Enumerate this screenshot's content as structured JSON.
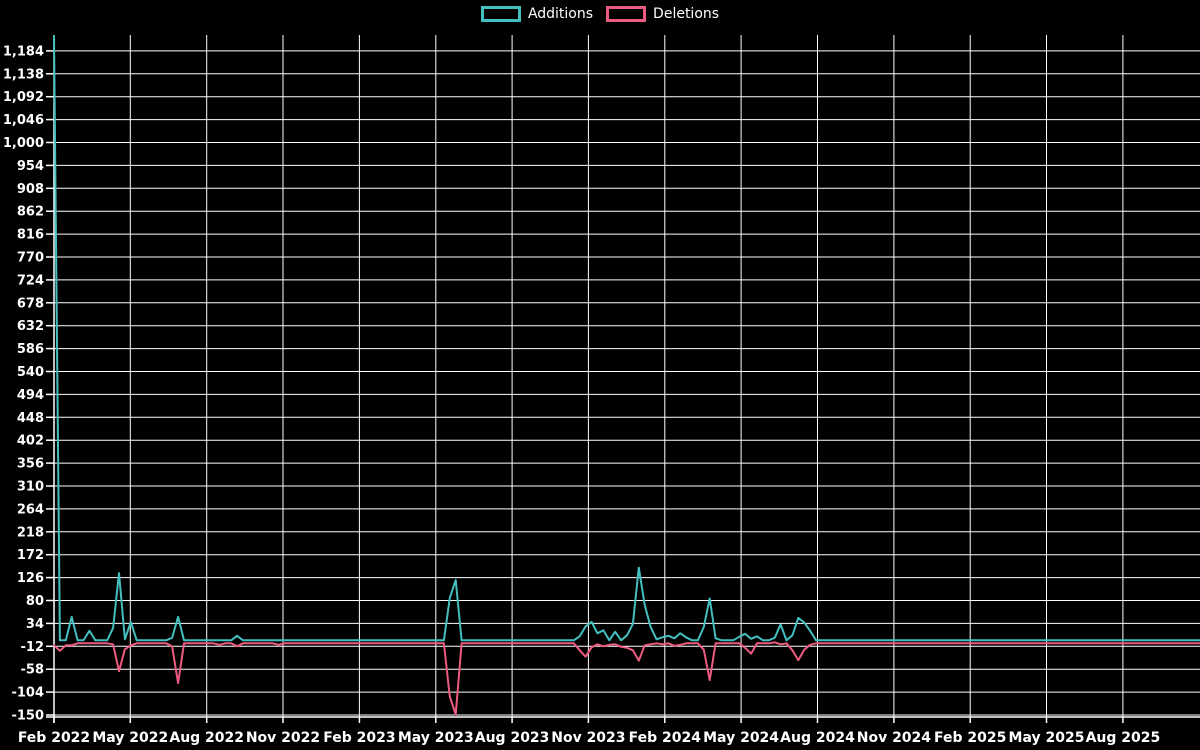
{
  "colors": {
    "background": "#000000",
    "grid": "#ffffff",
    "axis": "#ffffff",
    "text": "#ffffff",
    "additions": "#44bfbf",
    "deletions": "#ee5b80"
  },
  "legend": [
    {
      "label": "Additions",
      "color": "#44bfbf"
    },
    {
      "label": "Deletions",
      "color": "#ee5b80"
    }
  ],
  "chart_data": {
    "type": "line",
    "title": "",
    "legend_position": "top-center",
    "grid": true,
    "x_axis": {
      "unit": "week",
      "tick_labels": [
        "Feb 2022",
        "May 2022",
        "Aug 2022",
        "Nov 2022",
        "Feb 2023",
        "May 2023",
        "Aug 2023",
        "Nov 2023",
        "Feb 2024",
        "May 2024",
        "Aug 2024",
        "Nov 2024",
        "Feb 2025",
        "May 2025",
        "Aug 2025"
      ],
      "tick_months_from_start": [
        0,
        3,
        6,
        9,
        12,
        15,
        18,
        21,
        24,
        27,
        30,
        33,
        36,
        39,
        42
      ]
    },
    "y_axis": {
      "min": -150,
      "max": 1184,
      "step": 46,
      "tick_count": 30,
      "tick_labels_top_to_bottom": [
        "1,184",
        "1,138",
        "1,092",
        "1,046",
        "1,000",
        "954",
        "908",
        "862",
        "816",
        "770",
        "724",
        "678",
        "632",
        "586",
        "540",
        "494",
        "448",
        "402",
        "356",
        "310",
        "264",
        "218",
        "172",
        "126",
        "80",
        "34",
        "-12",
        "-58",
        "-104",
        "-150"
      ]
    },
    "n_weeks": 195,
    "series": [
      {
        "name": "Additions",
        "color": "#44bfbf",
        "default_value": 0,
        "points_nonzero": [
          [
            0,
            1214
          ],
          [
            3,
            47
          ],
          [
            6,
            19
          ],
          [
            10,
            25
          ],
          [
            11,
            135
          ],
          [
            12,
            2
          ],
          [
            13,
            37
          ],
          [
            20,
            5
          ],
          [
            21,
            47
          ],
          [
            31,
            9
          ],
          [
            67,
            85
          ],
          [
            68,
            121
          ],
          [
            89,
            8
          ],
          [
            90,
            28
          ],
          [
            91,
            37
          ],
          [
            92,
            14
          ],
          [
            93,
            20
          ],
          [
            95,
            17
          ],
          [
            97,
            10
          ],
          [
            98,
            33
          ],
          [
            99,
            146
          ],
          [
            100,
            71
          ],
          [
            101,
            27
          ],
          [
            102,
            2
          ],
          [
            103,
            6
          ],
          [
            104,
            9
          ],
          [
            105,
            4
          ],
          [
            106,
            14
          ],
          [
            107,
            6
          ],
          [
            110,
            27
          ],
          [
            111,
            84
          ],
          [
            112,
            4
          ],
          [
            116,
            7
          ],
          [
            117,
            13
          ],
          [
            118,
            3
          ],
          [
            119,
            8
          ],
          [
            122,
            5
          ],
          [
            123,
            32
          ],
          [
            125,
            10
          ],
          [
            126,
            45
          ],
          [
            127,
            36
          ],
          [
            128,
            19
          ]
        ]
      },
      {
        "name": "Deletions",
        "color": "#ee5b80",
        "default_value": -6,
        "points_nonzero": [
          [
            0,
            -10
          ],
          [
            1,
            -21
          ],
          [
            2,
            -10
          ],
          [
            3,
            -10
          ],
          [
            10,
            -8
          ],
          [
            11,
            -62
          ],
          [
            12,
            -18
          ],
          [
            13,
            -10
          ],
          [
            20,
            -12
          ],
          [
            21,
            -86
          ],
          [
            28,
            -9
          ],
          [
            31,
            -12
          ],
          [
            38,
            -9
          ],
          [
            67,
            -113
          ],
          [
            68,
            -149
          ],
          [
            89,
            -20
          ],
          [
            90,
            -33
          ],
          [
            91,
            -14
          ],
          [
            92,
            -8
          ],
          [
            93,
            -12
          ],
          [
            94,
            -9
          ],
          [
            95,
            -8
          ],
          [
            96,
            -13
          ],
          [
            97,
            -15
          ],
          [
            98,
            -20
          ],
          [
            99,
            -41
          ],
          [
            100,
            -10
          ],
          [
            101,
            -8
          ],
          [
            103,
            -8
          ],
          [
            105,
            -11
          ],
          [
            106,
            -9
          ],
          [
            110,
            -19
          ],
          [
            111,
            -80
          ],
          [
            117,
            -15
          ],
          [
            118,
            -27
          ],
          [
            122,
            -4
          ],
          [
            123,
            -8
          ],
          [
            125,
            -20
          ],
          [
            126,
            -40
          ],
          [
            127,
            -19
          ],
          [
            128,
            -9
          ]
        ]
      }
    ]
  }
}
